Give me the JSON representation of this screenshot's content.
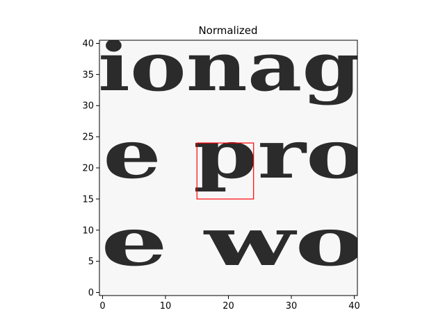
{
  "chart_data": {
    "type": "heatmap",
    "title": "Normalized",
    "xlabel": "",
    "ylabel": "",
    "colormap": "gray",
    "grid": false,
    "x_range": [
      -0.5,
      40.5
    ],
    "y_range": [
      40.5,
      -0.5
    ],
    "x_ticks": [
      0,
      10,
      20,
      30,
      40
    ],
    "y_ticks": [
      0,
      5,
      10,
      15,
      20,
      25,
      30,
      35,
      40
    ],
    "image_size": [
      41,
      41
    ],
    "depicted_text_lines": [
      "ionag",
      "e pro",
      "e wo"
    ],
    "highlight_box": {
      "x0": 15,
      "x1": 24,
      "y0": 15,
      "y1": 24,
      "color": "#ff0000"
    }
  }
}
